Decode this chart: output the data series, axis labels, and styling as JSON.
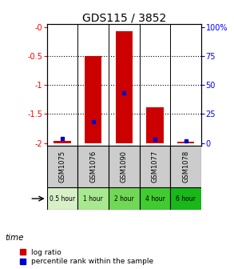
{
  "title": "GDS115 / 3852",
  "samples": [
    "GSM1075",
    "GSM1076",
    "GSM1090",
    "GSM1077",
    "GSM1078"
  ],
  "time_labels": [
    "0.5 hour",
    "1 hour",
    "2 hour",
    "4 hour",
    "6 hour"
  ],
  "time_colors": [
    "#d8f0c8",
    "#a8e890",
    "#70d855",
    "#40cc30",
    "#18b818"
  ],
  "log_ratios": [
    -1.97,
    -0.5,
    -0.07,
    -1.38,
    -1.98
  ],
  "percentile_ranks": [
    3.5,
    18,
    43,
    3.0,
    1.5
  ],
  "ylim_left": [
    -2.05,
    0.05
  ],
  "bar_color": "#cc0000",
  "point_color": "#0000cc",
  "bg_color": "#ffffff",
  "sample_bg": "#cccccc",
  "legend_red": "log ratio",
  "legend_blue": "percentile rank within the sample",
  "time_label": "time"
}
